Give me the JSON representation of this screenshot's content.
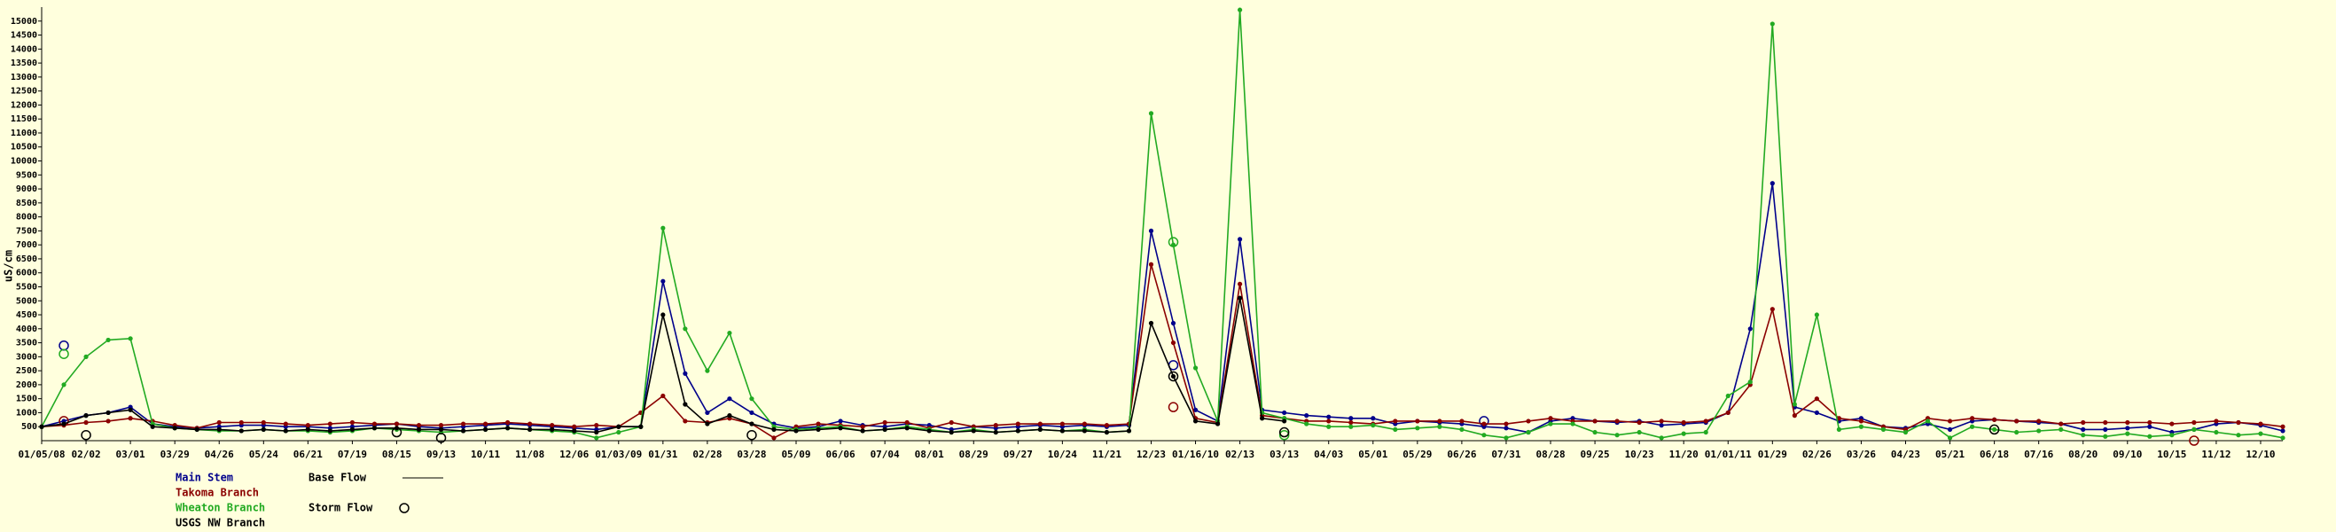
{
  "chart_data": {
    "type": "line",
    "y_label": "uS/cm",
    "legend_base": "Base Flow",
    "legend_storm": "Storm Flow",
    "ylim": [
      0,
      15500
    ],
    "yticks": [
      500,
      1000,
      1500,
      2000,
      2500,
      3000,
      3500,
      4000,
      4500,
      5000,
      5500,
      6000,
      6500,
      7000,
      7500,
      8000,
      8500,
      9000,
      9500,
      10000,
      10500,
      11000,
      11500,
      12000,
      12500,
      13000,
      13500,
      14000,
      14500,
      15000
    ],
    "categories": [
      "01/05/08",
      null,
      "02/02",
      null,
      "03/01",
      null,
      "03/29",
      null,
      "04/26",
      null,
      "05/24",
      null,
      "06/21",
      null,
      "07/19",
      null,
      "08/15",
      null,
      "09/13",
      null,
      "10/11",
      null,
      "11/08",
      null,
      "12/06",
      null,
      "01/03/09",
      null,
      "01/31",
      null,
      "02/28",
      null,
      "03/28",
      null,
      "05/09",
      null,
      "06/06",
      null,
      "07/04",
      null,
      "08/01",
      null,
      "08/29",
      null,
      "09/27",
      null,
      "10/24",
      null,
      "11/21",
      null,
      "12/23",
      null,
      "01/16/10",
      null,
      "02/13",
      null,
      "03/13",
      null,
      "04/03",
      null,
      "05/01",
      null,
      "05/29",
      null,
      "06/26",
      null,
      "07/31",
      null,
      "08/28",
      null,
      "09/25",
      null,
      "10/23",
      null,
      "11/20",
      null,
      "01/01/11",
      null,
      "01/29",
      null,
      "02/26",
      null,
      "03/26",
      null,
      "04/23",
      null,
      "05/21",
      null,
      "06/18",
      null,
      "07/16",
      null,
      "08/20",
      null,
      "09/10",
      null,
      "10/15",
      null,
      "11/12",
      null,
      "12/10",
      null
    ],
    "series": [
      {
        "name": "Main Stem",
        "color": "#00008b",
        "values": [
          500,
          700,
          900,
          1000,
          1200,
          600,
          500,
          450,
          500,
          550,
          550,
          500,
          500,
          450,
          500,
          550,
          600,
          500,
          450,
          500,
          550,
          600,
          550,
          500,
          450,
          400,
          500,
          500,
          5700,
          2400,
          1000,
          1500,
          1000,
          600,
          450,
          500,
          700,
          550,
          500,
          600,
          550,
          400,
          500,
          450,
          500,
          550,
          500,
          550,
          500,
          550,
          7500,
          4200,
          1100,
          700,
          7200,
          1100,
          1000,
          900,
          850,
          800,
          800,
          600,
          700,
          650,
          600,
          500,
          450,
          300,
          700,
          800,
          700,
          650,
          700,
          550,
          600,
          650,
          1000,
          4000,
          9200,
          1200,
          1000,
          700,
          800,
          500,
          450,
          600,
          400,
          700,
          750,
          700,
          650,
          600,
          400,
          400,
          450,
          500,
          300,
          400,
          600,
          650,
          550,
          350
        ],
        "storm_values": [
          null,
          3400,
          null,
          null,
          null,
          null,
          null,
          null,
          null,
          null,
          null,
          null,
          null,
          null,
          null,
          null,
          null,
          null,
          null,
          null,
          null,
          null,
          null,
          null,
          null,
          null,
          null,
          null,
          null,
          null,
          null,
          null,
          null,
          null,
          null,
          null,
          null,
          null,
          null,
          null,
          null,
          null,
          null,
          null,
          null,
          null,
          null,
          null,
          null,
          null,
          null,
          2700,
          null,
          null,
          null,
          null,
          null,
          null,
          null,
          null,
          null,
          null,
          null,
          null,
          null,
          700,
          null,
          null,
          null,
          null,
          null,
          null,
          null,
          null,
          null,
          null,
          null,
          null,
          null,
          null,
          null,
          null,
          null,
          null,
          null,
          null,
          null,
          null,
          null,
          null,
          null,
          null,
          null,
          null,
          null,
          null,
          null,
          null,
          null,
          null,
          null,
          null
        ]
      },
      {
        "name": "Takoma Branch",
        "color": "#8b0000",
        "values": [
          500,
          550,
          650,
          700,
          800,
          700,
          550,
          450,
          650,
          650,
          650,
          600,
          550,
          600,
          650,
          600,
          600,
          550,
          550,
          600,
          600,
          650,
          600,
          550,
          500,
          550,
          500,
          1000,
          1600,
          700,
          650,
          800,
          600,
          100,
          500,
          600,
          550,
          500,
          650,
          650,
          450,
          650,
          500,
          550,
          600,
          600,
          600,
          600,
          550,
          600,
          6300,
          3500,
          800,
          650,
          5600,
          900,
          800,
          700,
          700,
          650,
          600,
          700,
          700,
          700,
          700,
          600,
          600,
          700,
          800,
          700,
          700,
          700,
          650,
          700,
          650,
          700,
          1000,
          2000,
          4700,
          900,
          1500,
          800,
          700,
          500,
          400,
          800,
          700,
          800,
          750,
          700,
          700,
          600,
          650,
          650,
          650,
          650,
          600,
          650,
          700,
          650,
          600,
          500
        ],
        "storm_values": [
          null,
          700,
          null,
          null,
          null,
          null,
          null,
          null,
          null,
          null,
          null,
          null,
          null,
          null,
          null,
          null,
          null,
          null,
          null,
          null,
          null,
          null,
          null,
          null,
          null,
          null,
          null,
          null,
          null,
          null,
          null,
          null,
          null,
          null,
          null,
          null,
          null,
          null,
          null,
          null,
          null,
          null,
          null,
          null,
          null,
          null,
          null,
          null,
          null,
          null,
          null,
          1200,
          null,
          null,
          null,
          null,
          null,
          null,
          null,
          null,
          null,
          null,
          null,
          null,
          null,
          null,
          null,
          null,
          null,
          null,
          null,
          null,
          null,
          null,
          null,
          null,
          null,
          null,
          null,
          null,
          null,
          null,
          null,
          null,
          null,
          null,
          null,
          null,
          null,
          null,
          null,
          null,
          null,
          null,
          null,
          null,
          null,
          0,
          null,
          null,
          null,
          null
        ]
      },
      {
        "name": "Wheaton Branch",
        "color": "#22aa22",
        "values": [
          500,
          2000,
          3000,
          3600,
          3650,
          600,
          450,
          400,
          350,
          350,
          400,
          350,
          350,
          300,
          350,
          450,
          400,
          350,
          300,
          350,
          400,
          450,
          400,
          350,
          300,
          100,
          300,
          500,
          7600,
          4000,
          2500,
          3850,
          1500,
          500,
          400,
          450,
          500,
          350,
          400,
          500,
          400,
          300,
          400,
          300,
          350,
          400,
          350,
          400,
          300,
          350,
          11700,
          7000,
          2600,
          700,
          15400,
          1000,
          800,
          600,
          500,
          500,
          550,
          400,
          450,
          500,
          400,
          200,
          100,
          300,
          600,
          600,
          300,
          200,
          300,
          100,
          250,
          300,
          1600,
          2100,
          14900,
          1300,
          4500,
          400,
          500,
          400,
          300,
          700,
          100,
          500,
          400,
          300,
          350,
          400,
          200,
          150,
          250,
          150,
          200,
          400,
          300,
          200,
          250,
          100
        ],
        "storm_values": [
          null,
          3100,
          null,
          null,
          null,
          null,
          null,
          null,
          null,
          null,
          null,
          null,
          null,
          null,
          null,
          null,
          null,
          null,
          null,
          null,
          null,
          null,
          null,
          null,
          null,
          null,
          null,
          null,
          null,
          null,
          null,
          null,
          null,
          null,
          null,
          null,
          null,
          null,
          null,
          null,
          null,
          null,
          null,
          null,
          null,
          null,
          null,
          null,
          null,
          null,
          null,
          7100,
          null,
          null,
          null,
          null,
          200,
          null,
          null,
          null,
          null,
          null,
          null,
          null,
          null,
          null,
          null,
          null,
          null,
          null,
          null,
          null,
          null,
          null,
          null,
          null,
          null,
          null,
          null,
          null,
          null,
          null,
          null,
          null,
          null,
          null,
          null,
          null,
          null,
          null,
          null,
          null,
          null,
          null,
          null,
          null,
          null,
          null,
          null,
          null,
          null,
          null
        ]
      },
      {
        "name": "USGS NW Branch",
        "color": "#000000",
        "values": [
          500,
          600,
          900,
          1000,
          1100,
          500,
          450,
          400,
          400,
          350,
          400,
          350,
          400,
          350,
          400,
          450,
          450,
          400,
          400,
          350,
          400,
          450,
          400,
          400,
          350,
          300,
          500,
          500,
          4500,
          1300,
          600,
          900,
          600,
          400,
          350,
          400,
          450,
          350,
          400,
          450,
          350,
          300,
          350,
          300,
          350,
          400,
          350,
          350,
          300,
          350,
          4200,
          2300,
          700,
          600,
          5100,
          800,
          700,
          null,
          null,
          null,
          null,
          null,
          null,
          null,
          null,
          null,
          null,
          null,
          null,
          null,
          null,
          null,
          null,
          null,
          null,
          null,
          null,
          null,
          null,
          null,
          null,
          null,
          null,
          null,
          null,
          null,
          null,
          null,
          null,
          null,
          null,
          null,
          null,
          null,
          null,
          null,
          null,
          null,
          null,
          null,
          null,
          null
        ],
        "storm_values": [
          null,
          null,
          200,
          null,
          null,
          null,
          null,
          null,
          null,
          null,
          null,
          null,
          null,
          null,
          null,
          null,
          300,
          null,
          100,
          null,
          null,
          null,
          null,
          null,
          null,
          null,
          null,
          null,
          null,
          null,
          null,
          null,
          200,
          null,
          null,
          null,
          null,
          null,
          null,
          null,
          null,
          null,
          null,
          null,
          null,
          null,
          null,
          null,
          null,
          null,
          null,
          2300,
          null,
          null,
          null,
          null,
          300,
          null,
          null,
          null,
          null,
          null,
          null,
          null,
          null,
          null,
          null,
          null,
          null,
          null,
          null,
          null,
          null,
          null,
          null,
          null,
          null,
          null,
          null,
          null,
          null,
          null,
          null,
          null,
          null,
          null,
          null,
          null,
          400,
          null,
          null,
          null,
          null,
          null,
          null,
          null,
          null,
          null,
          null,
          null,
          null,
          null
        ]
      }
    ]
  }
}
